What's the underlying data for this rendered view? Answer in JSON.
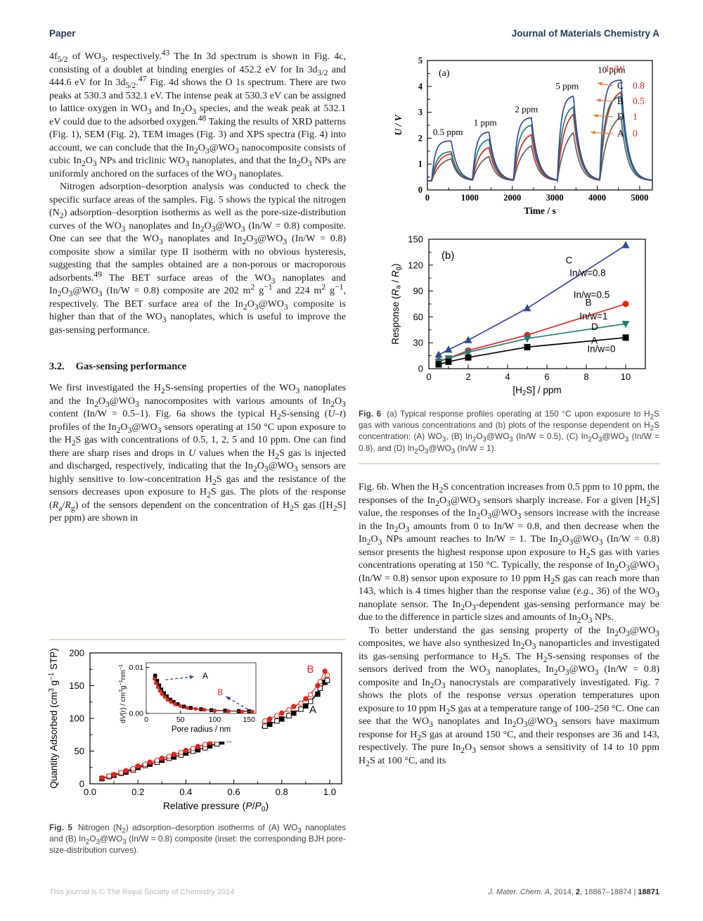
{
  "header": {
    "left": "Paper",
    "right": "Journal of Materials Chemistry A",
    "color": "#1e3a56"
  },
  "left_column": {
    "p1": "4f~5/2~ of WO~3~, respectively.^43^ The In 3d spectrum is shown in Fig. 4c, consisting of a doublet at binding energies of 452.2 eV for In 3d~3/2~ and 444.6 eV for In 3d~5/2~.^47^ Fig. 4d shows the O 1s spectrum. There are two peaks at 530.3 and 532.1 eV. The intense peak at 530.3 eV can be assigned to lattice oxygen in WO~3~ and In~2~O~3~ species, and the weak peak at 532.1 eV could due to the adsorbed oxygen.^48^ Taking the results of XRD patterns (Fig. 1), SEM (Fig. 2), TEM images (Fig. 3) and XPS spectra (Fig. 4) into account, we can conclude that the In~2~O~3~@WO~3~ nanocomposite consists of cubic In~2~O~3~ NPs and triclinic WO~3~ nanoplates, and that the In~2~O~3~ NPs are uniformly anchored on the surfaces of the WO~3~ nanoplates.",
    "p2": "Nitrogen adsorption–desorption analysis was conducted to check the specific surface areas of the samples. Fig. 5 shows the typical the nitrogen (N~2~) adsorption–desorption isotherms as well as the pore-size-distribution curves of the WO~3~ nanoplates and In~2~O~3~@WO~3~ (In/W = 0.8) composite. One can see that the WO~3~ nanoplates and In~2~O~3~@WO~3~ (In/W = 0.8) composite show a similar type II isotherm with no obvious hysteresis, suggesting that the samples obtained are a non-porous or macroporous adsorbents.^49^ The BET surface areas of the WO~3~ nanoplates and In~2~O~3~@WO~3~ (In/W = 0.8) composite are 202 m^2^ g^−1^ and 224 m^2^ g^−1^, respectively. The BET surface area of the In~2~O~3~@WO~3~ composite is higher than that of the WO~3~ nanoplates, which is useful to improve the gas-sensing performance.",
    "section_number": "3.2.",
    "section_title": "Gas-sensing performance",
    "p3": "We first investigated the H~2~S-sensing properties of the WO~3~ nanoplates and the In~2~O~3~@WO~3~ nanocomposites with various amounts of In~2~O~3~ content (In/W = 0.5–1). Fig. 6a shows the typical H~2~S-sensing (*U–t*) profiles of the In~2~O~3~@WO~3~ sensors operating at 150 °C upon exposure to the H~2~S gas with concentrations of 0.5, 1, 2, 5 and 10 ppm. One can find there are sharp rises and drops in *U* values when the H~2~S gas is injected and discharged, respectively, indicating that the In~2~O~3~@WO~3~ sensors are highly sensitive to low-concentration H~2~S gas and the resistance of the sensors decreases upon exposure to H~2~S gas. The plots of the response (*R*~a~/*R*~g~) of the sensors dependent on the concentration of H~2~S gas ([H~2~S] per ppm) are shown in"
  },
  "right_column": {
    "p1": "Fig. 6b. When the H~2~S concentration increases from 0.5 ppm to 10 ppm, the responses of the In~2~O~3~@WO~3~ sensors sharply increase. For a given [H~2~S] value, the responses of the In~2~O~3~@WO~3~ sensors increase with the increase in the In~2~O~3~ amounts from 0 to In/W = 0.8, and then decrease when the In~2~O~3~ NPs amount reaches to In/W = 1. The In~2~O~3~@WO~3~ (In/W = 0.8) sensor presents the highest response upon exposure to H~2~S gas with varies concentrations operating at 150 °C. Typically, the response of In~2~O~3~@WO~3~ (In/W = 0.8) sensor upon exposure to 10 ppm H~2~S gas can reach more than 143, which is 4 times higher than the response value (*e.g.*, 36) of the WO~3~ nanoplate sensor. The In~2~O~3~-dependent gas-sensing performance may be due to the difference in particle sizes and amounts of In~2~O~3~ NPs.",
    "p2": "To better understand the gas sensing property of the In~2~O~3~@WO~3~ composites, we have also synthesized In~2~O~3~ nanoparticles and investigated its gas-sensing performance to H~2~S. The H~2~S-sensing responses of the sensors derived from the WO~3~ nanoplates, In~2~O~3~@WO~3~ (In/W = 0.8) composite and In~2~O~3~ nanocrystals are comparatively investigated. Fig. 7 shows the plots of the response *versus* operation temperatures upon exposure to 10 ppm H~2~S gas at a temperature range of 100–250 °C. One can see that the WO~3~ nanoplates and In~2~O~3~@WO~3~ sensors have maximum response for H~2~S gas at around 150 °C, and their responses are 36 and 143, respectively. The pure In~2~O~3~ sensor shows a sensitivity of 14 to 10 ppm H~2~S at 100 °C, and its"
  },
  "figures": {
    "fig6_caption_label": "Fig. 6",
    "fig6_caption": "(a) Typical response profiles operating at 150 °C upon exposure to H~2~S gas with various concentrations and (b) plots of the response dependent on H~2~S concentration: (A) WO~3~, (B) In~2~O~3~@WO~3~ (In/W = 0.5), (C) In~2~O~3~@WO~3~ (In/W = 0.8), and (D) In~2~O~3~@WO~3~ (In/W = 1).",
    "fig5_caption_label": "Fig. 5",
    "fig5_caption": "Nitrogen (N~2~) adsorption–desorption isotherms of (A) WO~3~ nanoplates and (B) In~2~O~3~@WO~3~ (In/W = 0.8) composite (inset: the corresponding BJH pore-size-distribution curves)."
  },
  "footer": {
    "left": "This journal is © The Royal Society of Chemistry 2014",
    "journal": "J. Mater. Chem. A",
    "year": ", 2014, ",
    "volume": "2",
    "pages": ", 18867–18874",
    "separator": "  |  ",
    "page": "18871"
  },
  "chart_data": [
    {
      "id": "fig6a",
      "type": "line",
      "panel_label": "(a)",
      "xlabel": "Time / s",
      "ylabel": "U / V",
      "xlim": [
        0,
        5300
      ],
      "ylim": [
        0,
        5
      ],
      "xticks": [
        0,
        1000,
        2000,
        3000,
        4000,
        5000
      ],
      "yticks": [
        0,
        1,
        2,
        3,
        4,
        5
      ],
      "grid": false,
      "baseline_voltage": 0.35,
      "pulse_windows_s": [
        [
          100,
          560
        ],
        [
          1060,
          1450
        ],
        [
          2030,
          2450
        ],
        [
          3060,
          3440
        ],
        [
          4060,
          4560
        ]
      ],
      "concentrations_ppm": [
        0.5,
        1,
        2,
        5,
        10
      ],
      "series": [
        {
          "name": "A",
          "in_w": "0",
          "color": "#5f5f5f",
          "rise_tau_s": 200,
          "peaks_V": [
            1.3,
            1.45,
            1.9,
            2.55,
            3.05
          ]
        },
        {
          "name": "B",
          "in_w": "0.5",
          "color": "#e8231a",
          "rise_tau_s": 150,
          "peaks_V": [
            1.45,
            1.75,
            2.25,
            3.15,
            3.9
          ]
        },
        {
          "name": "D",
          "in_w": "1",
          "color": "#1a7f78",
          "rise_tau_s": 110,
          "peaks_V": [
            1.5,
            2.0,
            2.55,
            3.3,
            3.65
          ]
        },
        {
          "name": "C",
          "in_w": "0.8",
          "color": "#2f4b9e",
          "rise_tau_s": 80,
          "peaks_V": [
            1.9,
            2.25,
            2.8,
            3.65,
            4.25
          ]
        }
      ],
      "pulse_labels": [
        {
          "text": "0.5 ppm",
          "x": 130,
          "y": 2.12
        },
        {
          "text": "1 ppm",
          "x": 1090,
          "y": 2.48
        },
        {
          "text": "2 ppm",
          "x": 2060,
          "y": 3.0
        },
        {
          "text": "5 ppm",
          "x": 3020,
          "y": 3.9
        },
        {
          "text": "10 ppm",
          "x": 4010,
          "y": 4.52
        }
      ],
      "legend": {
        "position": "top-right",
        "header": "In/W",
        "header_color": "#e8231a",
        "arrow_color": "#f08030",
        "value_color": "#e8231a",
        "entries": [
          {
            "letter": "C",
            "value": "0.8"
          },
          {
            "letter": "B",
            "value": "0.5"
          },
          {
            "letter": "D",
            "value": "1"
          },
          {
            "letter": "A",
            "value": "0"
          }
        ]
      }
    },
    {
      "id": "fig6b",
      "type": "line",
      "panel_label": "(b)",
      "xlabel": "[H~2~S] / ppm",
      "ylabel": "Response (*R*~a~ / *R*~g~)",
      "xlim": [
        0,
        11
      ],
      "ylim": [
        0,
        150
      ],
      "xticks": [
        0,
        2,
        4,
        6,
        8,
        10
      ],
      "yticks": [
        0,
        30,
        60,
        90,
        120,
        150
      ],
      "grid": false,
      "x": [
        0.5,
        1,
        2,
        5,
        10
      ],
      "series": [
        {
          "name": "C",
          "label": "In/w=0.8",
          "color": "#2f4b9e",
          "marker": "triangle-up",
          "values": [
            16,
            22,
            33,
            70,
            143
          ]
        },
        {
          "name": "B",
          "label": "In/w=0.5",
          "color": "#e8231a",
          "marker": "circle",
          "values": [
            9,
            12,
            21,
            39,
            75
          ]
        },
        {
          "name": "D",
          "label": "In/w=1",
          "color": "#1a7f78",
          "marker": "triangle-down",
          "values": [
            8,
            12,
            19,
            35,
            52
          ]
        },
        {
          "name": "A",
          "label": "In/w=0",
          "color": "#000000",
          "marker": "square",
          "values": [
            5,
            8,
            13,
            25,
            36
          ]
        }
      ],
      "annotations": [
        {
          "text": "C",
          "x": 6.95,
          "y": 122
        },
        {
          "text": "In/w=0.8",
          "x": 7.15,
          "y": 107
        },
        {
          "text": "In/w=0.5",
          "x": 7.35,
          "y": 82
        },
        {
          "text": "B",
          "x": 7.95,
          "y": 73
        },
        {
          "text": "In/w=1",
          "x": 7.65,
          "y": 57
        },
        {
          "text": "D",
          "x": 8.25,
          "y": 45
        },
        {
          "text": "A",
          "x": 8.25,
          "y": 29
        },
        {
          "text": "In/w=0",
          "x": 8.05,
          "y": 19
        }
      ]
    },
    {
      "id": "fig5",
      "type": "scatter",
      "xlabel": "Relative pressure (*P*/*P*~0~)",
      "ylabel": "Quantity Adsorbed (cm^3^ g^−1^ STP)",
      "xlim": [
        0,
        1.05
      ],
      "ylim": [
        0,
        200
      ],
      "xticks": [
        0.0,
        0.2,
        0.4,
        0.6,
        0.8,
        1.0
      ],
      "yticks": [
        0,
        50,
        100,
        150,
        200
      ],
      "grid": false,
      "series": [
        {
          "name": "A adsorption",
          "marker": "square",
          "filled": true,
          "color": "#000000",
          "x": [
            0.05,
            0.1,
            0.15,
            0.2,
            0.25,
            0.3,
            0.35,
            0.4,
            0.45,
            0.5,
            0.55,
            0.6,
            0.65,
            0.7,
            0.75,
            0.8,
            0.85,
            0.9,
            0.95,
            0.98
          ],
          "y": [
            8,
            13,
            18,
            25,
            30,
            36,
            41,
            47,
            52,
            58,
            64,
            71,
            77,
            84,
            91,
            99,
            108,
            119,
            137,
            155
          ]
        },
        {
          "name": "A desorption",
          "marker": "square",
          "filled": false,
          "color": "#000000",
          "x": [
            0.08,
            0.13,
            0.18,
            0.23,
            0.28,
            0.33,
            0.38,
            0.43,
            0.48,
            0.53,
            0.58,
            0.63,
            0.68,
            0.73,
            0.78,
            0.83,
            0.88,
            0.92,
            0.96,
            0.99
          ],
          "y": [
            11,
            16,
            21,
            28,
            33,
            39,
            44,
            50,
            55,
            61,
            68,
            75,
            81,
            88,
            96,
            104,
            114,
            126,
            146,
            158
          ]
        },
        {
          "name": "B adsorption",
          "marker": "circle",
          "filled": true,
          "color": "#e8231a",
          "x": [
            0.05,
            0.1,
            0.15,
            0.2,
            0.25,
            0.3,
            0.35,
            0.4,
            0.45,
            0.5,
            0.55,
            0.6,
            0.65,
            0.7,
            0.75,
            0.8,
            0.85,
            0.9,
            0.95,
            0.98
          ],
          "y": [
            9,
            14,
            20,
            27,
            33,
            39,
            45,
            51,
            57,
            63,
            70,
            77,
            84,
            91,
            99,
            108,
            118,
            130,
            150,
            172
          ]
        },
        {
          "name": "B desorption",
          "marker": "circle",
          "filled": false,
          "color": "#e8231a",
          "x": [
            0.08,
            0.13,
            0.18,
            0.23,
            0.28,
            0.33,
            0.38,
            0.43,
            0.48,
            0.53,
            0.58,
            0.63,
            0.68,
            0.73,
            0.78,
            0.83,
            0.88,
            0.92,
            0.96,
            0.99
          ],
          "y": [
            12,
            17,
            23,
            30,
            36,
            42,
            48,
            54,
            60,
            67,
            74,
            81,
            88,
            96,
            104,
            113,
            123,
            136,
            156,
            166
          ]
        }
      ],
      "labels": [
        {
          "text": "B",
          "color": "#e8231a",
          "x": 0.905,
          "y": 170
        },
        {
          "text": "A",
          "color": "#000000",
          "x": 0.915,
          "y": 108
        }
      ],
      "inset": {
        "xlabel": "Pore radius / nm",
        "ylabel": "d*V*(r) / cm^3^g^−1^nm^−1^",
        "xlim": [
          0,
          160
        ],
        "ylim": [
          0,
          0.011
        ],
        "xticks": [
          0,
          50,
          100,
          150
        ],
        "yticks": [
          0.0,
          0.01
        ],
        "arrow_color": "#2f4b9e",
        "series": [
          {
            "name": "A",
            "marker": "square",
            "color": "#000000",
            "x": [
              13,
              16,
              19,
              22,
              26,
              30,
              35,
              40,
              46,
              55,
              65,
              80,
              95,
              115,
              135,
              150
            ],
            "y": [
              0.0082,
              0.0071,
              0.0061,
              0.0052,
              0.0044,
              0.0037,
              0.003,
              0.0025,
              0.002,
              0.0015,
              0.0012,
              0.0009,
              0.0007,
              0.0006,
              0.0005,
              0.0005
            ]
          },
          {
            "name": "B",
            "marker": "circle",
            "color": "#e8231a",
            "x": [
              12,
              14,
              17,
              20,
              23,
              27,
              31,
              36,
              42,
              50,
              60,
              72,
              85,
              100,
              120,
              140,
              155
            ],
            "y": [
              0.0075,
              0.0066,
              0.0057,
              0.0049,
              0.0042,
              0.0036,
              0.003,
              0.0025,
              0.002,
              0.0016,
              0.0012,
              0.001,
              0.0008,
              0.0006,
              0.0005,
              0.0004,
              0.0004
            ]
          }
        ],
        "labels": [
          {
            "text": "A",
            "color": "#000000",
            "x": 82,
            "y": 0.0082
          },
          {
            "text": "B",
            "color": "#e8231a",
            "x": 104,
            "y": 0.0046
          }
        ]
      }
    }
  ]
}
